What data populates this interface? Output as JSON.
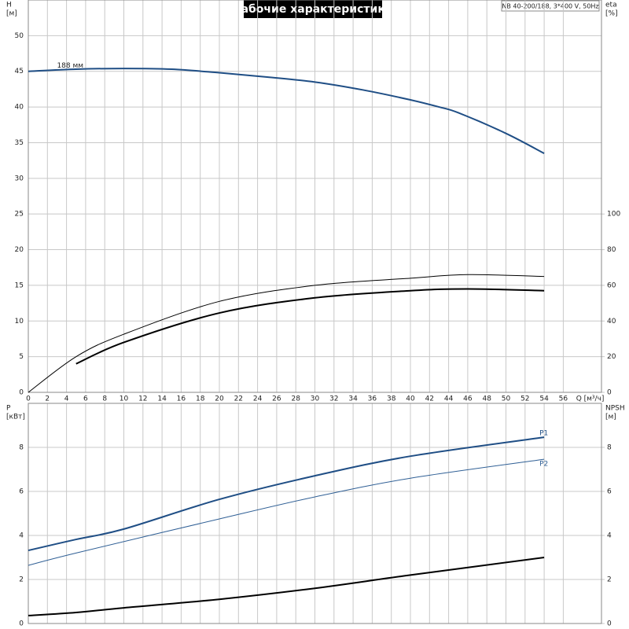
{
  "chart_data": [
    {
      "type": "line",
      "title": "Рабочие характеристики",
      "subtitle": "NB 40-200/188, 3*400 V, 50Hz",
      "ylabel": "H",
      "yunit": "[м]",
      "y2label": "eta",
      "y2unit": "[%]",
      "xlabel": "Q [м³/ч]",
      "xlim": [
        0,
        60
      ],
      "xticks": [
        0,
        2,
        4,
        6,
        8,
        10,
        12,
        14,
        16,
        18,
        20,
        22,
        24,
        26,
        28,
        30,
        32,
        34,
        36,
        38,
        40,
        42,
        44,
        46,
        48,
        50,
        52,
        54,
        56
      ],
      "ylim": [
        0,
        55
      ],
      "yticks": [
        0,
        5,
        10,
        15,
        20,
        25,
        30,
        35,
        40,
        45,
        50
      ],
      "y2lim": [
        0,
        220
      ],
      "y2ticks": [
        0,
        20,
        40,
        60,
        80,
        100
      ],
      "grid": true,
      "annotation": "188 мм",
      "series": [
        {
          "color": "#1f4e85",
          "width": 2,
          "x": [
            0,
            5,
            10,
            15,
            20,
            25,
            30,
            35,
            40,
            43,
            45,
            50,
            54
          ],
          "values": [
            45,
            45.3,
            45.4,
            45.3,
            44.8,
            44.2,
            43.5,
            42.4,
            41,
            40,
            39.2,
            36.3,
            33.5
          ]
        },
        {
          "color": "#000000",
          "width": 1,
          "axis": "y2",
          "x": [
            0,
            5,
            10,
            20,
            30,
            40,
            46,
            54
          ],
          "values": [
            0,
            20,
            32.6,
            51,
            60,
            64,
            66,
            65
          ]
        },
        {
          "color": "#000000",
          "width": 2,
          "axis": "y2",
          "x": [
            5,
            10,
            20,
            30,
            40,
            46,
            54
          ],
          "values": [
            16,
            28,
            44.5,
            53,
            57,
            58,
            57
          ]
        }
      ]
    },
    {
      "type": "line",
      "ylabel": "P",
      "yunit": "[кВт]",
      "y2label": "NPSH",
      "y2unit": "[м]",
      "xlim": [
        0,
        60
      ],
      "ylim": [
        0,
        10
      ],
      "yticks": [
        0,
        2,
        4,
        6,
        8
      ],
      "y2lim": [
        0,
        10
      ],
      "y2ticks": [
        0,
        2,
        4,
        6,
        8
      ],
      "grid": true,
      "series": [
        {
          "name": "P1",
          "color": "#1f4e85",
          "width": 2,
          "x": [
            0,
            5,
            10,
            20,
            30,
            40,
            54
          ],
          "values": [
            3.32,
            3.82,
            4.29,
            5.64,
            6.71,
            7.6,
            8.46
          ]
        },
        {
          "name": "P2",
          "color": "#2f5f95",
          "width": 1,
          "x": [
            0,
            5,
            20,
            30,
            40,
            54
          ],
          "values": [
            2.64,
            3.2,
            4.75,
            5.75,
            6.6,
            7.46
          ]
        },
        {
          "color": "#000000",
          "width": 2,
          "axis": "y2",
          "x": [
            0,
            5,
            10,
            20,
            30,
            40,
            54
          ],
          "values": [
            0.36,
            0.5,
            0.71,
            1.1,
            1.6,
            2.2,
            3.0
          ]
        }
      ]
    }
  ]
}
